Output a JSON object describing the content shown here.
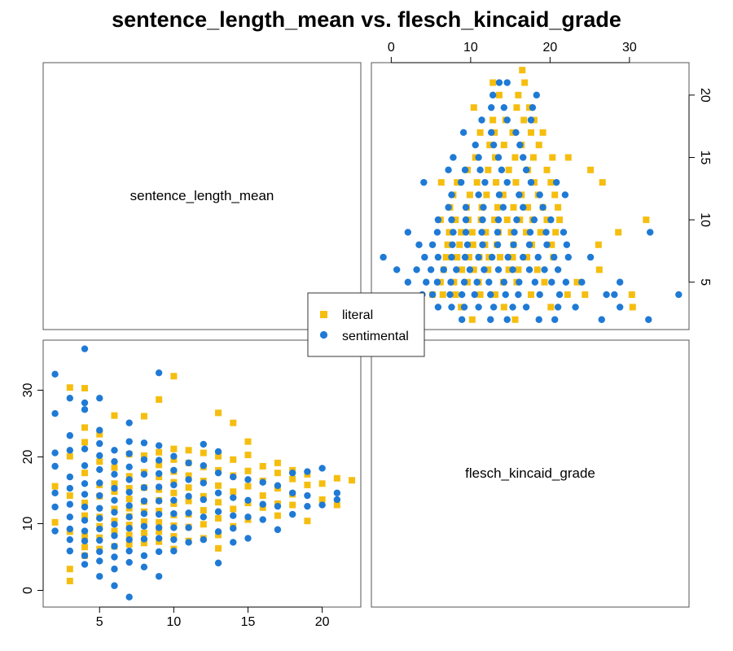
{
  "chart_data": {
    "type": "scatter",
    "title": "sentence_length_mean vs. flesch_kincaid_grade",
    "variables": [
      "sentence_length_mean",
      "flesch_kincaid_grade"
    ],
    "axis_ranges": {
      "sentence_length_mean": [
        1.2,
        22.6
      ],
      "flesch_kincaid_grade": [
        -2.5,
        37.5
      ]
    },
    "ticks": {
      "sentence_length_mean": [
        5,
        10,
        15,
        20
      ],
      "flesch_kincaid_grade": [
        0,
        10,
        20,
        30
      ]
    },
    "grid": false,
    "legend_placement": "center",
    "series": [
      {
        "name": "literal",
        "color": "#F5BE0F",
        "marker": "square",
        "points": [
          [
            2,
            15.6
          ],
          [
            2,
            10.2
          ],
          [
            3,
            30.4
          ],
          [
            3,
            3.2
          ],
          [
            3,
            1.4
          ],
          [
            3,
            20.1
          ],
          [
            3,
            14.2
          ],
          [
            3,
            8.8
          ],
          [
            4,
            30.3
          ],
          [
            4,
            24.4
          ],
          [
            4,
            22.2
          ],
          [
            4,
            17.6
          ],
          [
            4,
            13.1
          ],
          [
            4,
            11.2
          ],
          [
            4,
            8.1
          ],
          [
            4,
            6.5
          ],
          [
            4,
            5.2
          ],
          [
            5,
            23.4
          ],
          [
            5,
            19.3
          ],
          [
            5,
            15.8
          ],
          [
            5,
            14.1
          ],
          [
            5,
            11.0
          ],
          [
            5,
            9.6
          ],
          [
            5,
            7.9
          ],
          [
            5,
            6.2
          ],
          [
            6,
            26.2
          ],
          [
            6,
            18.4
          ],
          [
            6,
            16.0
          ],
          [
            6,
            14.8
          ],
          [
            6,
            12.2
          ],
          [
            6,
            10.4
          ],
          [
            6,
            8.9
          ],
          [
            6,
            6.6
          ],
          [
            7,
            20.4
          ],
          [
            7,
            17.1
          ],
          [
            7,
            15.3
          ],
          [
            7,
            13.7
          ],
          [
            7,
            12.3
          ],
          [
            7,
            11.1
          ],
          [
            7,
            9.8
          ],
          [
            7,
            8.3
          ],
          [
            7,
            6.9
          ],
          [
            8,
            26.1
          ],
          [
            8,
            20.2
          ],
          [
            8,
            17.7
          ],
          [
            8,
            15.4
          ],
          [
            8,
            13.3
          ],
          [
            8,
            11.8
          ],
          [
            8,
            10.3
          ],
          [
            8,
            8.6
          ],
          [
            8,
            7.1
          ],
          [
            9,
            28.6
          ],
          [
            9,
            20.7
          ],
          [
            9,
            18.8
          ],
          [
            9,
            17.0
          ],
          [
            9,
            15.1
          ],
          [
            9,
            13.5
          ],
          [
            9,
            11.9
          ],
          [
            9,
            10.2
          ],
          [
            9,
            8.8
          ],
          [
            9,
            7.3
          ],
          [
            10,
            32.1
          ],
          [
            10,
            21.2
          ],
          [
            10,
            19.6
          ],
          [
            10,
            17.8
          ],
          [
            10,
            16.2
          ],
          [
            10,
            14.6
          ],
          [
            10,
            13.0
          ],
          [
            10,
            11.3
          ],
          [
            10,
            9.7
          ],
          [
            10,
            8.1
          ],
          [
            10,
            6.2
          ],
          [
            11,
            21.0
          ],
          [
            11,
            19.1
          ],
          [
            11,
            17.2
          ],
          [
            11,
            15.4
          ],
          [
            11,
            13.4
          ],
          [
            11,
            11.4
          ],
          [
            11,
            9.5
          ],
          [
            11,
            7.4
          ],
          [
            12,
            20.6
          ],
          [
            12,
            18.5
          ],
          [
            12,
            16.4
          ],
          [
            12,
            14.1
          ],
          [
            12,
            12.0
          ],
          [
            12,
            9.9
          ],
          [
            12,
            7.8
          ],
          [
            13,
            26.6
          ],
          [
            13,
            20.1
          ],
          [
            13,
            18.0
          ],
          [
            13,
            15.7
          ],
          [
            13,
            13.2
          ],
          [
            13,
            10.8
          ],
          [
            13,
            8.3
          ],
          [
            13,
            6.3
          ],
          [
            14,
            25.1
          ],
          [
            14,
            19.6
          ],
          [
            14,
            17.2
          ],
          [
            14,
            14.8
          ],
          [
            14,
            12.2
          ],
          [
            14,
            9.6
          ],
          [
            15,
            22.3
          ],
          [
            15,
            20.3
          ],
          [
            15,
            17.9
          ],
          [
            15,
            15.6
          ],
          [
            15,
            13.1
          ],
          [
            15,
            10.6
          ],
          [
            16,
            18.6
          ],
          [
            16,
            16.4
          ],
          [
            16,
            14.2
          ],
          [
            16,
            12.4
          ],
          [
            17,
            19.1
          ],
          [
            17,
            17.6
          ],
          [
            17,
            15.3
          ],
          [
            17,
            13.0
          ],
          [
            17,
            11.2
          ],
          [
            18,
            18.0
          ],
          [
            18,
            16.7
          ],
          [
            18,
            14.4
          ],
          [
            18,
            12.8
          ],
          [
            19,
            17.4
          ],
          [
            19,
            15.8
          ],
          [
            19,
            10.4
          ],
          [
            20,
            16.0
          ],
          [
            20,
            13.6
          ],
          [
            21,
            16.8
          ],
          [
            21,
            12.8
          ],
          [
            22,
            16.5
          ]
        ]
      },
      {
        "name": "sentimental",
        "color": "#1F7AD5",
        "marker": "circle",
        "points": [
          [
            2,
            32.4
          ],
          [
            2,
            26.5
          ],
          [
            2,
            20.6
          ],
          [
            2,
            18.6
          ],
          [
            2,
            14.6
          ],
          [
            2,
            12.5
          ],
          [
            2,
            8.9
          ],
          [
            3,
            28.8
          ],
          [
            3,
            23.2
          ],
          [
            3,
            21.0
          ],
          [
            3,
            17.0
          ],
          [
            3,
            15.3
          ],
          [
            3,
            12.9
          ],
          [
            3,
            11.0
          ],
          [
            3,
            9.2
          ],
          [
            3,
            7.6
          ],
          [
            3,
            5.9
          ],
          [
            4,
            36.2
          ],
          [
            4,
            28.1
          ],
          [
            4,
            27.1
          ],
          [
            4,
            21.2
          ],
          [
            4,
            18.7
          ],
          [
            4,
            16.0
          ],
          [
            4,
            14.4
          ],
          [
            4,
            12.5
          ],
          [
            4,
            10.5
          ],
          [
            4,
            8.9
          ],
          [
            4,
            7.4
          ],
          [
            4,
            5.2
          ],
          [
            4,
            3.9
          ],
          [
            5,
            28.8
          ],
          [
            5,
            24.0
          ],
          [
            5,
            22.0
          ],
          [
            5,
            20.2
          ],
          [
            5,
            18.1
          ],
          [
            5,
            16.1
          ],
          [
            5,
            14.2
          ],
          [
            5,
            12.3
          ],
          [
            5,
            10.8
          ],
          [
            5,
            9.2
          ],
          [
            5,
            7.5
          ],
          [
            5,
            5.8
          ],
          [
            5,
            4.4
          ],
          [
            5,
            2.1
          ],
          [
            6,
            21.0
          ],
          [
            6,
            19.3
          ],
          [
            6,
            17.4
          ],
          [
            6,
            15.3
          ],
          [
            6,
            13.5
          ],
          [
            6,
            11.7
          ],
          [
            6,
            9.9
          ],
          [
            6,
            8.2
          ],
          [
            6,
            6.6
          ],
          [
            6,
            5.0
          ],
          [
            6,
            3.2
          ],
          [
            6,
            0.7
          ],
          [
            7,
            25.1
          ],
          [
            7,
            22.3
          ],
          [
            7,
            20.5
          ],
          [
            7,
            18.5
          ],
          [
            7,
            16.6
          ],
          [
            7,
            14.7
          ],
          [
            7,
            12.7
          ],
          [
            7,
            11.0
          ],
          [
            7,
            9.3
          ],
          [
            7,
            7.6
          ],
          [
            7,
            5.9
          ],
          [
            7,
            4.2
          ],
          [
            7,
            -1.0
          ],
          [
            8,
            22.1
          ],
          [
            8,
            19.6
          ],
          [
            8,
            17.4
          ],
          [
            8,
            15.4
          ],
          [
            8,
            13.4
          ],
          [
            8,
            11.5
          ],
          [
            8,
            9.6
          ],
          [
            8,
            7.7
          ],
          [
            8,
            5.2
          ],
          [
            8,
            3.5
          ],
          [
            9,
            32.6
          ],
          [
            9,
            21.7
          ],
          [
            9,
            19.5
          ],
          [
            9,
            17.5
          ],
          [
            9,
            15.5
          ],
          [
            9,
            13.4
          ],
          [
            9,
            11.4
          ],
          [
            9,
            9.4
          ],
          [
            9,
            7.8
          ],
          [
            9,
            5.8
          ],
          [
            9,
            2.1
          ],
          [
            10,
            20.1
          ],
          [
            10,
            18.0
          ],
          [
            10,
            15.8
          ],
          [
            10,
            13.5
          ],
          [
            10,
            11.5
          ],
          [
            10,
            9.4
          ],
          [
            10,
            7.6
          ],
          [
            10,
            5.9
          ],
          [
            11,
            19.1
          ],
          [
            11,
            16.6
          ],
          [
            11,
            14.1
          ],
          [
            11,
            11.6
          ],
          [
            11,
            9.4
          ],
          [
            11,
            7.2
          ],
          [
            12,
            21.9
          ],
          [
            12,
            18.7
          ],
          [
            12,
            16.1
          ],
          [
            12,
            13.6
          ],
          [
            12,
            11.0
          ],
          [
            12,
            7.6
          ],
          [
            13,
            20.8
          ],
          [
            13,
            17.6
          ],
          [
            13,
            14.6
          ],
          [
            13,
            11.8
          ],
          [
            13,
            8.8
          ],
          [
            13,
            4.1
          ],
          [
            14,
            17.0
          ],
          [
            14,
            13.9
          ],
          [
            14,
            11.2
          ],
          [
            14,
            9.3
          ],
          [
            14,
            7.2
          ],
          [
            15,
            16.6
          ],
          [
            15,
            13.5
          ],
          [
            15,
            11.0
          ],
          [
            15,
            7.8
          ],
          [
            16,
            16.2
          ],
          [
            16,
            12.9
          ],
          [
            16,
            10.6
          ],
          [
            17,
            15.7
          ],
          [
            17,
            12.6
          ],
          [
            17,
            9.1
          ],
          [
            18,
            17.6
          ],
          [
            18,
            14.6
          ],
          [
            18,
            11.4
          ],
          [
            19,
            17.8
          ],
          [
            19,
            14.2
          ],
          [
            19,
            12.6
          ],
          [
            20,
            18.3
          ],
          [
            20,
            12.8
          ],
          [
            21,
            14.6
          ],
          [
            21,
            13.6
          ]
        ]
      }
    ]
  }
}
